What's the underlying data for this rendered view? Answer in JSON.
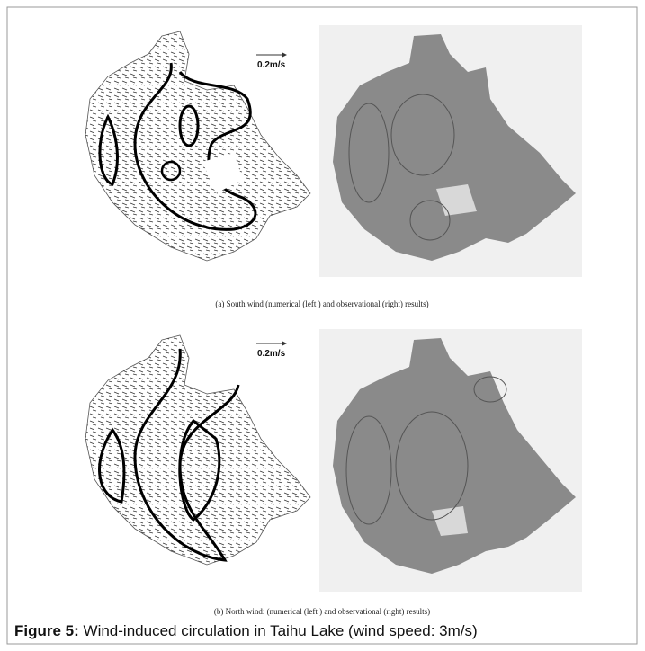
{
  "panels": [
    {
      "scale_label": "0.2m/s",
      "caption": "(a)  South wind  (numerical (left ) and observational (right) results)"
    },
    {
      "scale_label": "0.2m/s",
      "caption": "(b)  North wind:  (numerical (left ) and observational (right) results)"
    }
  ],
  "figure": {
    "label": "Figure 5:",
    "caption": "Wind-induced circulation in Taihu Lake (wind speed: 3m/s)"
  }
}
